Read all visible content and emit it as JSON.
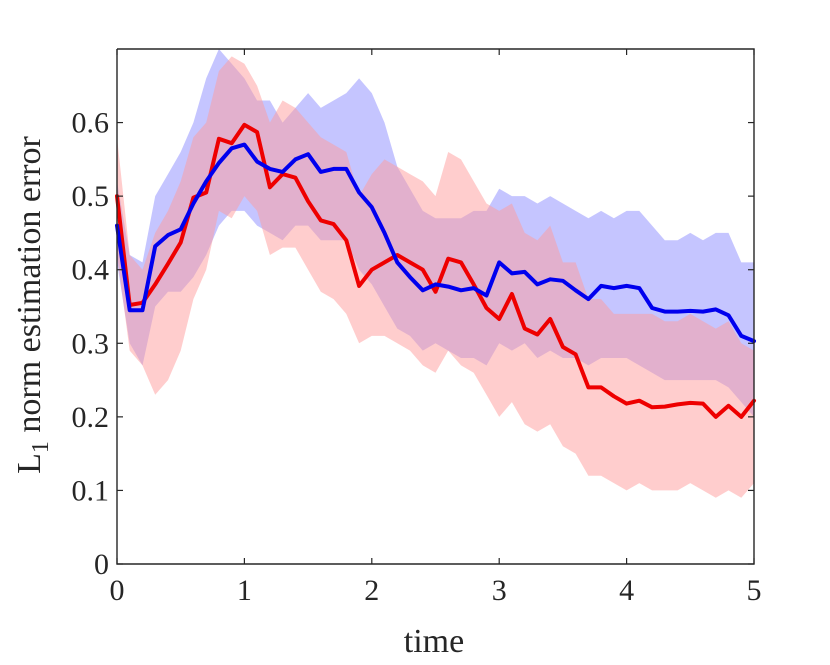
{
  "chart_data": {
    "type": "line",
    "title": "",
    "xlabel": "time",
    "ylabel_base": "L",
    "ylabel_sub": "1",
    "ylabel_rest": " norm estimation error",
    "xlim": [
      0,
      5
    ],
    "ylim": [
      0,
      0.7
    ],
    "xticks": [
      0,
      1,
      2,
      3,
      4,
      5
    ],
    "xtick_labels": [
      "0",
      "1",
      "2",
      "3",
      "4",
      "5"
    ],
    "yticks": [
      0,
      0.1,
      0.2,
      0.3,
      0.4,
      0.5,
      0.6
    ],
    "ytick_labels": [
      "0",
      "0.1",
      "0.2",
      "0.3",
      "0.4",
      "0.5",
      "0.6"
    ],
    "grid": false,
    "legend": null,
    "x": [
      0,
      0.1,
      0.2,
      0.3,
      0.4,
      0.5,
      0.6,
      0.7,
      0.8,
      0.9,
      1.0,
      1.1,
      1.2,
      1.3,
      1.4,
      1.5,
      1.6,
      1.7,
      1.8,
      1.9,
      2.0,
      2.1,
      2.2,
      2.3,
      2.4,
      2.5,
      2.6,
      2.7,
      2.8,
      2.9,
      3.0,
      3.1,
      3.2,
      3.3,
      3.4,
      3.5,
      3.6,
      3.7,
      3.8,
      3.9,
      4.0,
      4.1,
      4.2,
      4.3,
      4.4,
      4.5,
      4.6,
      4.7,
      4.8,
      4.9,
      5.0
    ],
    "series": [
      {
        "name": "blue",
        "color": "#0000ee",
        "band_color": "#8c8cff",
        "values": [
          0.46,
          0.345,
          0.345,
          0.432,
          0.447,
          0.455,
          0.49,
          0.52,
          0.545,
          0.565,
          0.57,
          0.547,
          0.537,
          0.533,
          0.55,
          0.557,
          0.533,
          0.537,
          0.537,
          0.505,
          0.485,
          0.45,
          0.41,
          0.39,
          0.372,
          0.38,
          0.377,
          0.372,
          0.375,
          0.365,
          0.41,
          0.395,
          0.397,
          0.38,
          0.387,
          0.385,
          0.372,
          0.36,
          0.378,
          0.375,
          0.378,
          0.375,
          0.348,
          0.343,
          0.343,
          0.344,
          0.343,
          0.346,
          0.338,
          0.31,
          0.303
        ],
        "upper": [
          0.52,
          0.42,
          0.41,
          0.5,
          0.53,
          0.56,
          0.6,
          0.66,
          0.7,
          0.68,
          0.66,
          0.63,
          0.63,
          0.6,
          0.62,
          0.64,
          0.62,
          0.63,
          0.64,
          0.66,
          0.64,
          0.6,
          0.54,
          0.51,
          0.48,
          0.47,
          0.47,
          0.47,
          0.48,
          0.48,
          0.51,
          0.5,
          0.5,
          0.49,
          0.5,
          0.49,
          0.48,
          0.47,
          0.48,
          0.47,
          0.48,
          0.48,
          0.46,
          0.44,
          0.44,
          0.45,
          0.44,
          0.45,
          0.45,
          0.41,
          0.41
        ],
        "lower": [
          0.41,
          0.3,
          0.27,
          0.35,
          0.37,
          0.37,
          0.39,
          0.42,
          0.46,
          0.48,
          0.48,
          0.46,
          0.45,
          0.44,
          0.46,
          0.46,
          0.44,
          0.44,
          0.44,
          0.4,
          0.38,
          0.35,
          0.32,
          0.31,
          0.29,
          0.3,
          0.29,
          0.28,
          0.28,
          0.27,
          0.3,
          0.29,
          0.3,
          0.28,
          0.29,
          0.28,
          0.28,
          0.27,
          0.28,
          0.28,
          0.28,
          0.27,
          0.26,
          0.25,
          0.25,
          0.25,
          0.25,
          0.25,
          0.24,
          0.22,
          0.2
        ]
      },
      {
        "name": "red",
        "color": "#ee0000",
        "band_color": "#ff9c9c",
        "values": [
          0.5,
          0.352,
          0.355,
          0.38,
          0.408,
          0.437,
          0.498,
          0.505,
          0.578,
          0.572,
          0.597,
          0.587,
          0.512,
          0.53,
          0.525,
          0.493,
          0.467,
          0.462,
          0.44,
          0.378,
          0.4,
          0.41,
          0.42,
          0.41,
          0.4,
          0.37,
          0.415,
          0.41,
          0.38,
          0.348,
          0.333,
          0.367,
          0.32,
          0.312,
          0.333,
          0.295,
          0.285,
          0.24,
          0.24,
          0.228,
          0.218,
          0.222,
          0.213,
          0.214,
          0.217,
          0.219,
          0.218,
          0.2,
          0.215,
          0.2,
          0.222
        ],
        "upper": [
          0.58,
          0.42,
          0.4,
          0.45,
          0.48,
          0.52,
          0.58,
          0.6,
          0.67,
          0.69,
          0.68,
          0.65,
          0.6,
          0.63,
          0.62,
          0.6,
          0.58,
          0.57,
          0.56,
          0.5,
          0.53,
          0.55,
          0.54,
          0.53,
          0.52,
          0.5,
          0.56,
          0.55,
          0.52,
          0.49,
          0.48,
          0.49,
          0.45,
          0.44,
          0.46,
          0.41,
          0.41,
          0.36,
          0.36,
          0.34,
          0.34,
          0.34,
          0.34,
          0.33,
          0.33,
          0.34,
          0.33,
          0.32,
          0.33,
          0.3,
          0.29
        ],
        "lower": [
          0.42,
          0.29,
          0.27,
          0.23,
          0.25,
          0.29,
          0.36,
          0.4,
          0.48,
          0.47,
          0.5,
          0.48,
          0.42,
          0.43,
          0.43,
          0.4,
          0.37,
          0.36,
          0.34,
          0.3,
          0.31,
          0.31,
          0.3,
          0.29,
          0.27,
          0.26,
          0.29,
          0.27,
          0.26,
          0.23,
          0.2,
          0.22,
          0.19,
          0.18,
          0.19,
          0.16,
          0.15,
          0.12,
          0.12,
          0.11,
          0.1,
          0.11,
          0.1,
          0.1,
          0.1,
          0.11,
          0.1,
          0.09,
          0.1,
          0.09,
          0.11
        ]
      }
    ]
  }
}
